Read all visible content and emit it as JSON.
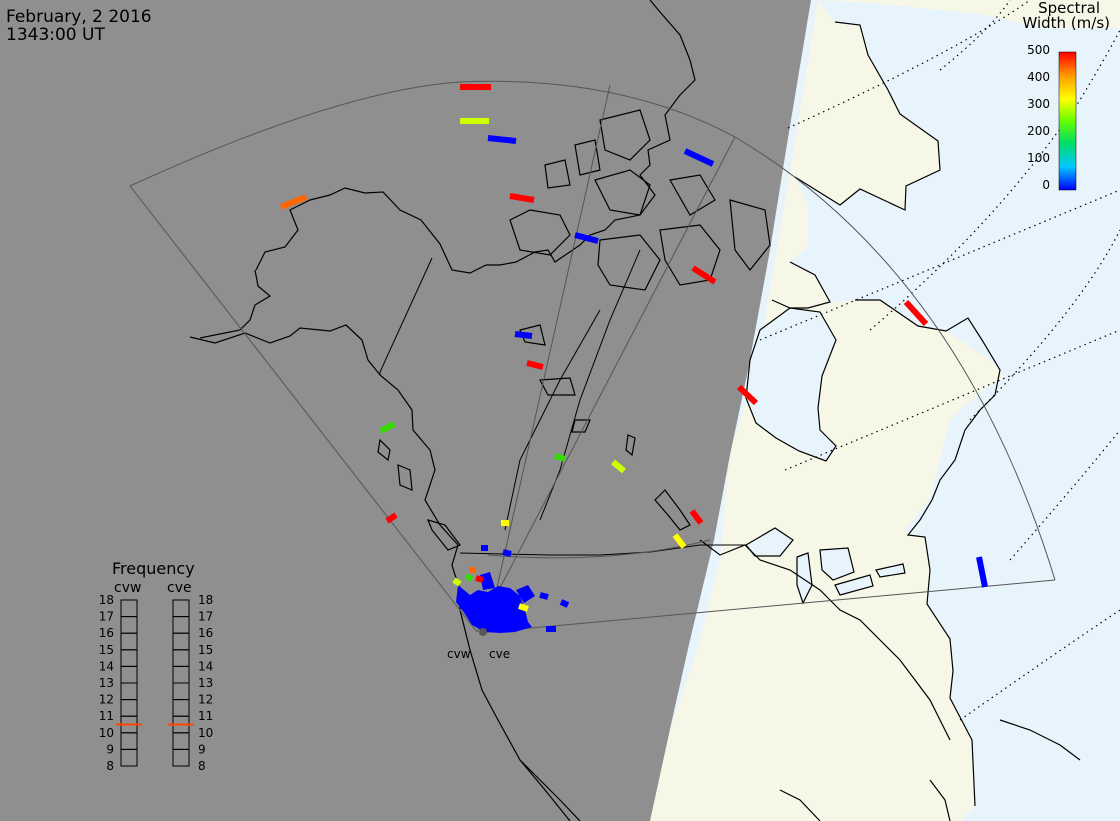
{
  "header": {
    "date": "February, 2 2016",
    "time": "1343:00 UT"
  },
  "legend": {
    "title_line1": "Spectral",
    "title_line2": "Width (m/s)",
    "ticks": [
      "500",
      "400",
      "300",
      "200",
      "100",
      "0"
    ],
    "colors": [
      "#0000ff",
      "#00c8ff",
      "#00dd66",
      "#66ff00",
      "#ffff00",
      "#ff9900",
      "#ff0000"
    ],
    "range": [
      0,
      500
    ]
  },
  "frequency_panel": {
    "title": "Frequency",
    "radars": [
      "cvw",
      "cve"
    ],
    "ticks": [
      "18",
      "17",
      "16",
      "15",
      "14",
      "13",
      "12",
      "11",
      "10",
      "9",
      "8"
    ],
    "cvw_level": 10.5,
    "cve_level": 10.5,
    "marker_color": "#ff4400"
  },
  "map": {
    "night_color": "#8f8f8f",
    "day_land_color": "#f7f7e8",
    "day_ocean_color": "#e8f4fb",
    "coast_color": "#000000",
    "fov_color": "#555555",
    "grid_color": "#000000",
    "site_labels": [
      "cvw",
      "cve"
    ]
  },
  "echoes": [
    {
      "x1": 460,
      "y1": 87,
      "x2": 491,
      "y2": 87,
      "color": "#ff0000"
    },
    {
      "x1": 460,
      "y1": 121,
      "x2": 489,
      "y2": 121,
      "color": "#ccff00"
    },
    {
      "x1": 488,
      "y1": 138,
      "x2": 516,
      "y2": 141,
      "color": "#0000ff"
    },
    {
      "x1": 685,
      "y1": 151,
      "x2": 713,
      "y2": 164,
      "color": "#0000ff"
    },
    {
      "x1": 281,
      "y1": 207,
      "x2": 306,
      "y2": 197,
      "color": "#ff6600"
    },
    {
      "x1": 510,
      "y1": 196,
      "x2": 534,
      "y2": 200,
      "color": "#ff0000"
    },
    {
      "x1": 575,
      "y1": 235,
      "x2": 598,
      "y2": 241,
      "color": "#0000ff"
    },
    {
      "x1": 693,
      "y1": 268,
      "x2": 715,
      "y2": 282,
      "color": "#ff0000"
    },
    {
      "x1": 906,
      "y1": 302,
      "x2": 926,
      "y2": 324,
      "color": "#ff0000"
    },
    {
      "x1": 515,
      "y1": 334,
      "x2": 532,
      "y2": 336,
      "color": "#0000ff"
    },
    {
      "x1": 527,
      "y1": 363,
      "x2": 543,
      "y2": 367,
      "color": "#ff0000"
    },
    {
      "x1": 739,
      "y1": 387,
      "x2": 756,
      "y2": 403,
      "color": "#ff0000"
    },
    {
      "x1": 381,
      "y1": 431,
      "x2": 394,
      "y2": 424,
      "color": "#33dd00"
    },
    {
      "x1": 555,
      "y1": 456,
      "x2": 565,
      "y2": 459,
      "color": "#33dd00"
    },
    {
      "x1": 613,
      "y1": 462,
      "x2": 624,
      "y2": 471,
      "color": "#ccff00"
    },
    {
      "x1": 387,
      "y1": 521,
      "x2": 396,
      "y2": 515,
      "color": "#ff0000"
    },
    {
      "x1": 692,
      "y1": 511,
      "x2": 701,
      "y2": 523,
      "color": "#ff0000"
    },
    {
      "x1": 501,
      "y1": 523,
      "x2": 509,
      "y2": 523,
      "color": "#ffff00"
    },
    {
      "x1": 675,
      "y1": 535,
      "x2": 684,
      "y2": 547,
      "color": "#ffff00"
    },
    {
      "x1": 979,
      "y1": 557,
      "x2": 985,
      "y2": 587,
      "color": "#0000ff"
    },
    {
      "x1": 481,
      "y1": 548,
      "x2": 488,
      "y2": 548,
      "color": "#0000ff"
    },
    {
      "x1": 503,
      "y1": 552,
      "x2": 511,
      "y2": 554,
      "color": "#0000ff"
    },
    {
      "x1": 469,
      "y1": 570,
      "x2": 476,
      "y2": 570,
      "color": "#ff6600"
    },
    {
      "x1": 476,
      "y1": 578,
      "x2": 483,
      "y2": 580,
      "color": "#ff0000"
    },
    {
      "x1": 466,
      "y1": 576,
      "x2": 472,
      "y2": 579,
      "color": "#33dd00"
    },
    {
      "x1": 454,
      "y1": 580,
      "x2": 460,
      "y2": 584,
      "color": "#ccff00"
    },
    {
      "x1": 519,
      "y1": 606,
      "x2": 528,
      "y2": 609,
      "color": "#ffff00"
    },
    {
      "x1": 540,
      "y1": 595,
      "x2": 548,
      "y2": 597,
      "color": "#0000ff"
    },
    {
      "x1": 561,
      "y1": 602,
      "x2": 568,
      "y2": 605,
      "color": "#0000ff"
    },
    {
      "x1": 546,
      "y1": 629,
      "x2": 556,
      "y2": 629,
      "color": "#0000ff"
    }
  ]
}
